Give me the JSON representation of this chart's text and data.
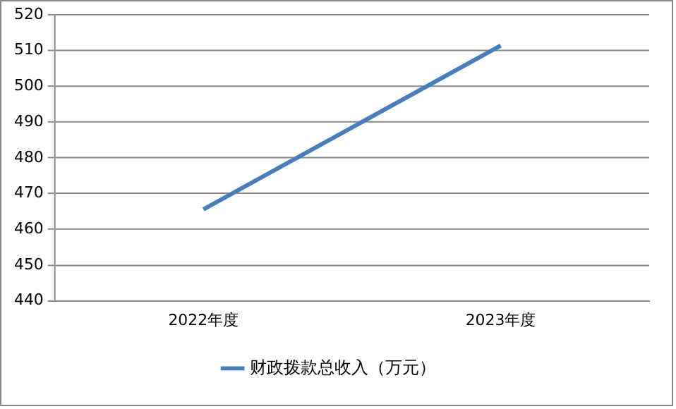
{
  "chart_data": {
    "type": "line",
    "categories": [
      "2022年度",
      "2023年度"
    ],
    "series": [
      {
        "name": "财政拨款总收入（万元）",
        "color": "#4a7ebb",
        "values": [
          465.6,
          511.4
        ]
      }
    ],
    "ylim": [
      440,
      520
    ],
    "yticks": [
      440,
      450,
      460,
      470,
      480,
      490,
      500,
      510,
      520
    ],
    "grid": "y",
    "legend": "bottom",
    "marker": "none"
  }
}
